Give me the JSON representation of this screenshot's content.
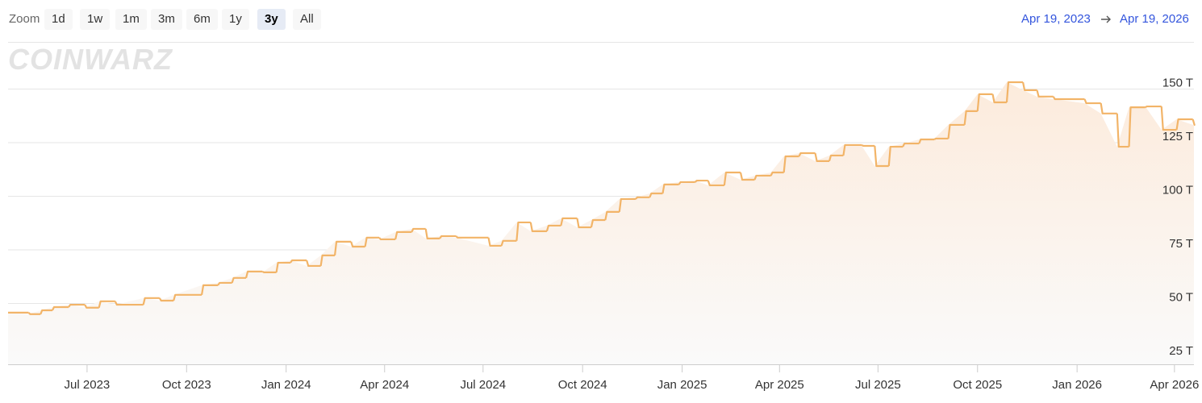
{
  "zoom_label": "Zoom",
  "zoom_buttons": [
    "1d",
    "1w",
    "1m",
    "3m",
    "6m",
    "1y",
    "3y",
    "All"
  ],
  "active_zoom": "3y",
  "range_start": "Apr 19, 2023",
  "range_end": "Apr 19, 2026",
  "logo": "COINWARZ",
  "chart_data": {
    "type": "line",
    "color": "#f2b468",
    "x": [
      "2023-04-19",
      "2023-05-08",
      "2023-05-19",
      "2023-05-30",
      "2023-06-14",
      "2023-06-29",
      "2023-07-12",
      "2023-07-27",
      "2023-08-22",
      "2023-09-06",
      "2023-09-19",
      "2023-10-15",
      "2023-10-30",
      "2023-11-12",
      "2023-11-25",
      "2023-12-10",
      "2023-12-23",
      "2024-01-05",
      "2024-01-20",
      "2024-02-02",
      "2024-02-15",
      "2024-03-01",
      "2024-03-14",
      "2024-03-27",
      "2024-04-11",
      "2024-04-26",
      "2024-05-09",
      "2024-05-22",
      "2024-06-06",
      "2024-07-06",
      "2024-07-18",
      "2024-08-01",
      "2024-08-14",
      "2024-08-29",
      "2024-09-11",
      "2024-09-26",
      "2024-10-09",
      "2024-10-22",
      "2024-11-04",
      "2024-11-19",
      "2024-12-02",
      "2024-12-14",
      "2024-12-29",
      "2025-01-13",
      "2025-01-25",
      "2025-02-09",
      "2025-02-24",
      "2025-03-09",
      "2025-03-24",
      "2025-04-05",
      "2025-04-19",
      "2025-05-04",
      "2025-05-17",
      "2025-05-30",
      "2025-06-16",
      "2025-06-28",
      "2025-07-11",
      "2025-07-24",
      "2025-08-08",
      "2025-08-22",
      "2025-09-04",
      "2025-09-19",
      "2025-10-01",
      "2025-10-15",
      "2025-10-28",
      "2025-11-12",
      "2025-11-25",
      "2025-12-10",
      "2026-01-08",
      "2026-01-23",
      "2026-02-07",
      "2026-02-18",
      "2026-03-05",
      "2026-03-20",
      "2026-04-03",
      "2026-04-18"
    ],
    "values": [
      45.7,
      45,
      46.8,
      48.3,
      49.4,
      48,
      51,
      49.4,
      52.5,
      51.3,
      54,
      58.5,
      59.6,
      61.9,
      64.9,
      64.5,
      69,
      70.1,
      67.5,
      72.4,
      78.8,
      76.5,
      80.7,
      79.9,
      83.3,
      84.8,
      80.3,
      81.4,
      80.7,
      76.9,
      79.2,
      87.8,
      83.7,
      86.3,
      89.7,
      85.5,
      88.9,
      92.7,
      98.7,
      99.5,
      101.3,
      105.5,
      106.6,
      107.3,
      105.1,
      111.1,
      107.7,
      109.6,
      111.1,
      118.6,
      120.1,
      116.4,
      119,
      123.9,
      123.5,
      114.1,
      123.1,
      124.6,
      126.5,
      126.9,
      133.3,
      139.7,
      147.6,
      143.8,
      153.2,
      149.5,
      146.5,
      145.3,
      143.4,
      138.6,
      123.1,
      141.5,
      141.9,
      131,
      135.9,
      133.3
    ],
    "xlim": [
      "2023-04-19",
      "2026-04-19"
    ],
    "xticks": [
      {
        "value": "2023-07-01",
        "label": "Jul 2023"
      },
      {
        "value": "2023-10-01",
        "label": "Oct 2023"
      },
      {
        "value": "2024-01-01",
        "label": "Jan 2024"
      },
      {
        "value": "2024-04-01",
        "label": "Apr 2024"
      },
      {
        "value": "2024-07-01",
        "label": "Jul 2024"
      },
      {
        "value": "2024-10-01",
        "label": "Oct 2024"
      },
      {
        "value": "2025-01-01",
        "label": "Jan 2025"
      },
      {
        "value": "2025-04-01",
        "label": "Apr 2025"
      },
      {
        "value": "2025-07-01",
        "label": "Jul 2025"
      },
      {
        "value": "2025-10-01",
        "label": "Oct 2025"
      },
      {
        "value": "2026-01-01",
        "label": "Jan 2026"
      },
      {
        "value": "2026-04-01",
        "label": "Apr 2026"
      }
    ],
    "ylim": [
      21.6,
      172
    ],
    "yticks": [
      {
        "value": 25,
        "label": "25 T"
      },
      {
        "value": 50,
        "label": "50 T"
      },
      {
        "value": 75,
        "label": "75 T"
      },
      {
        "value": 100,
        "label": "100 T"
      },
      {
        "value": 125,
        "label": "125 T"
      },
      {
        "value": 150,
        "label": "150 T"
      }
    ],
    "grid": true
  }
}
